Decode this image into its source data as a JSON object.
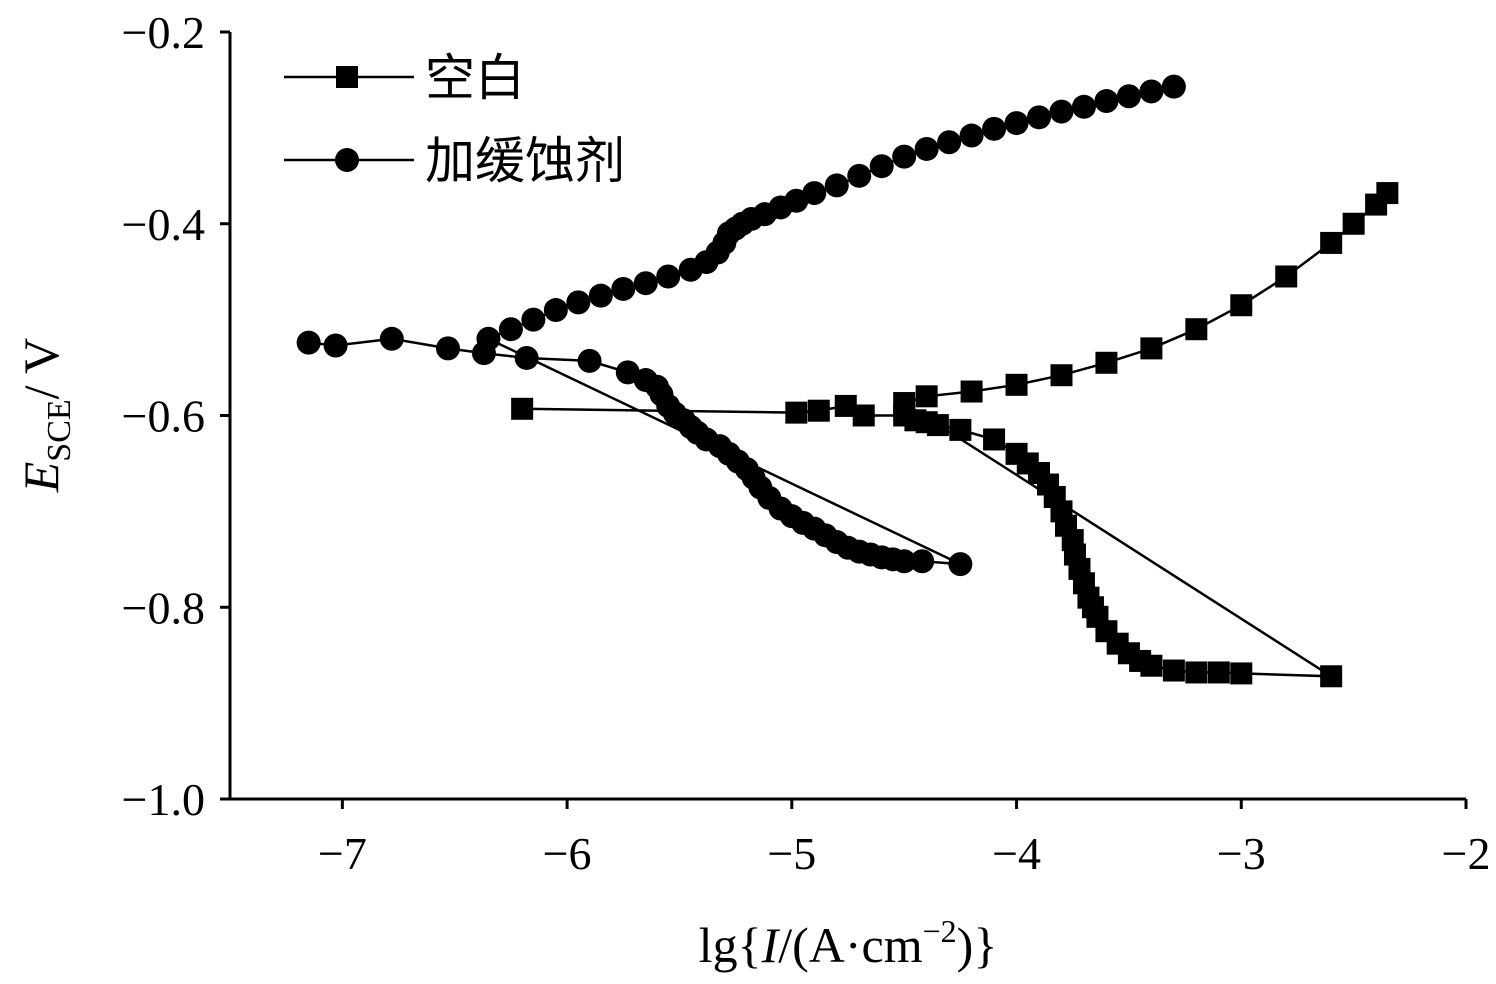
{
  "chart_data": {
    "type": "scatter",
    "xlabel": {
      "prefix": "lg",
      "open": "{",
      "var": "I",
      "mid": "/(A·cm",
      "sup": "−2",
      "close": ")}"
    },
    "ylabel": {
      "var": "E",
      "sub": "SCE",
      "unit": "/ V"
    },
    "xlim": [
      -7.5,
      -2
    ],
    "ylim": [
      -1.0,
      -0.2
    ],
    "xticks": [
      -7,
      -6,
      -5,
      -4,
      -3,
      -2
    ],
    "yticks": [
      -1.0,
      -0.8,
      -0.6,
      -0.4,
      -0.2
    ],
    "xtick_labels": [
      "−7",
      "−6",
      "−5",
      "−4",
      "−3",
      "−2"
    ],
    "ytick_labels": [
      "−1.0",
      "−0.8",
      "−0.6",
      "−0.4",
      "−0.2"
    ],
    "grid": false,
    "legend_position": "top-left",
    "series": [
      {
        "name": "空白",
        "marker": "square",
        "color": "#000000",
        "x": [
          -6.2,
          -4.98,
          -4.88,
          -4.76,
          -4.68,
          -4.5,
          -4.45,
          -4.4,
          -4.35,
          -4.25,
          -4.1,
          -4.0,
          -3.95,
          -3.9,
          -3.86,
          -3.83,
          -3.8,
          -3.78,
          -3.75,
          -3.74,
          -3.72,
          -3.7,
          -3.68,
          -3.66,
          -3.64,
          -3.6,
          -3.55,
          -3.5,
          -3.45,
          -3.4,
          -3.3,
          -3.2,
          -3.1,
          -3.0,
          -2.6,
          -4.5,
          -4.4,
          -4.2,
          -4.0,
          -3.8,
          -3.6,
          -3.4,
          -3.2,
          -3.0,
          -2.8,
          -2.6,
          -2.5,
          -2.4,
          -2.35
        ],
        "y": [
          -0.593,
          -0.597,
          -0.595,
          -0.59,
          -0.6,
          -0.6,
          -0.605,
          -0.607,
          -0.61,
          -0.615,
          -0.625,
          -0.64,
          -0.65,
          -0.66,
          -0.672,
          -0.685,
          -0.7,
          -0.715,
          -0.73,
          -0.745,
          -0.76,
          -0.775,
          -0.79,
          -0.8,
          -0.81,
          -0.825,
          -0.838,
          -0.848,
          -0.856,
          -0.861,
          -0.866,
          -0.868,
          -0.868,
          -0.869,
          -0.872,
          -0.587,
          -0.58,
          -0.575,
          -0.568,
          -0.558,
          -0.545,
          -0.53,
          -0.51,
          -0.485,
          -0.455,
          -0.42,
          -0.4,
          -0.38,
          -0.368
        ]
      },
      {
        "name": "加缓蚀剂",
        "marker": "circle",
        "color": "#000000",
        "x": [
          -7.15,
          -7.03,
          -6.78,
          -6.53,
          -6.37,
          -6.18,
          -5.9,
          -5.73,
          -5.65,
          -5.6,
          -5.58,
          -5.55,
          -5.52,
          -5.48,
          -5.45,
          -5.42,
          -5.38,
          -5.32,
          -5.28,
          -5.24,
          -5.2,
          -5.17,
          -5.14,
          -5.1,
          -5.05,
          -5.0,
          -4.95,
          -4.9,
          -4.85,
          -4.8,
          -4.75,
          -4.7,
          -4.65,
          -4.6,
          -4.55,
          -4.5,
          -4.42,
          -4.25,
          -6.35,
          -6.25,
          -6.15,
          -6.05,
          -5.95,
          -5.85,
          -5.75,
          -5.65,
          -5.55,
          -5.45,
          -5.38,
          -5.33,
          -5.3,
          -5.28,
          -5.25,
          -5.22,
          -5.18,
          -5.12,
          -5.05,
          -4.98,
          -4.9,
          -4.8,
          -4.7,
          -4.6,
          -4.5,
          -4.4,
          -4.3,
          -4.2,
          -4.1,
          -4.0,
          -3.9,
          -3.8,
          -3.7,
          -3.6,
          -3.5,
          -3.4,
          -3.3
        ],
        "y": [
          -0.524,
          -0.527,
          -0.52,
          -0.53,
          -0.535,
          -0.54,
          -0.543,
          -0.555,
          -0.563,
          -0.57,
          -0.578,
          -0.59,
          -0.598,
          -0.605,
          -0.612,
          -0.618,
          -0.625,
          -0.632,
          -0.64,
          -0.648,
          -0.656,
          -0.665,
          -0.675,
          -0.686,
          -0.697,
          -0.705,
          -0.712,
          -0.718,
          -0.725,
          -0.732,
          -0.738,
          -0.742,
          -0.745,
          -0.748,
          -0.75,
          -0.752,
          -0.752,
          -0.755,
          -0.52,
          -0.51,
          -0.5,
          -0.49,
          -0.482,
          -0.475,
          -0.468,
          -0.462,
          -0.455,
          -0.448,
          -0.44,
          -0.43,
          -0.42,
          -0.41,
          -0.405,
          -0.4,
          -0.395,
          -0.39,
          -0.383,
          -0.376,
          -0.368,
          -0.36,
          -0.35,
          -0.34,
          -0.33,
          -0.322,
          -0.315,
          -0.308,
          -0.301,
          -0.295,
          -0.289,
          -0.283,
          -0.278,
          -0.272,
          -0.267,
          -0.262,
          -0.257
        ]
      }
    ]
  }
}
